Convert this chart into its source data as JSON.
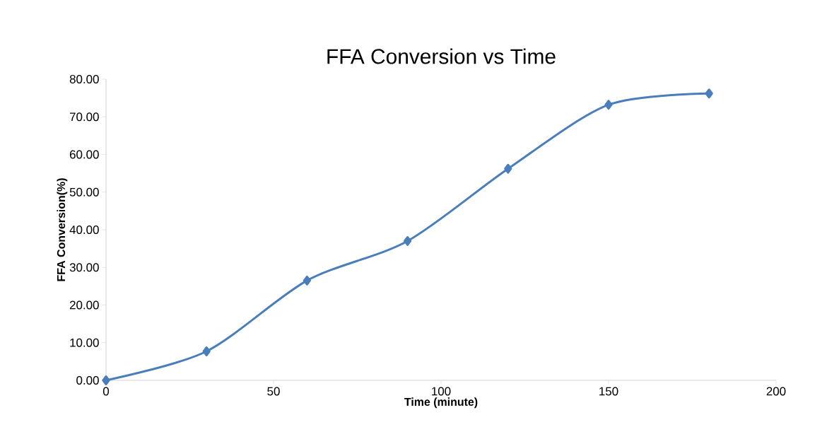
{
  "chart_data": {
    "type": "line",
    "title": "FFA Conversion  vs Time",
    "xlabel": "Time (minute)",
    "ylabel": "FFA Conversion(%)",
    "x": [
      0,
      30,
      60,
      90,
      120,
      150,
      180
    ],
    "series": [
      {
        "color": "#4a7ebb",
        "values": [
          0,
          7.7,
          26.5,
          37.0,
          56.2,
          73.2,
          76.2
        ]
      }
    ],
    "xlim": [
      0,
      200
    ],
    "xticks": [
      0,
      50,
      100,
      150,
      200
    ],
    "ylim": [
      0,
      80
    ],
    "yticks": [
      {
        "value": 0,
        "label": "0.00"
      },
      {
        "value": 10,
        "label": "10.00"
      },
      {
        "value": 20,
        "label": "20.00"
      },
      {
        "value": 30,
        "label": "30.00"
      },
      {
        "value": 40,
        "label": "40.00"
      },
      {
        "value": 50,
        "label": "50.00"
      },
      {
        "value": 60,
        "label": "60.00"
      },
      {
        "value": 70,
        "label": "70.00"
      },
      {
        "value": 80,
        "label": "80.00"
      }
    ],
    "grid": false,
    "marker": "diamond",
    "line_style": "solid"
  }
}
